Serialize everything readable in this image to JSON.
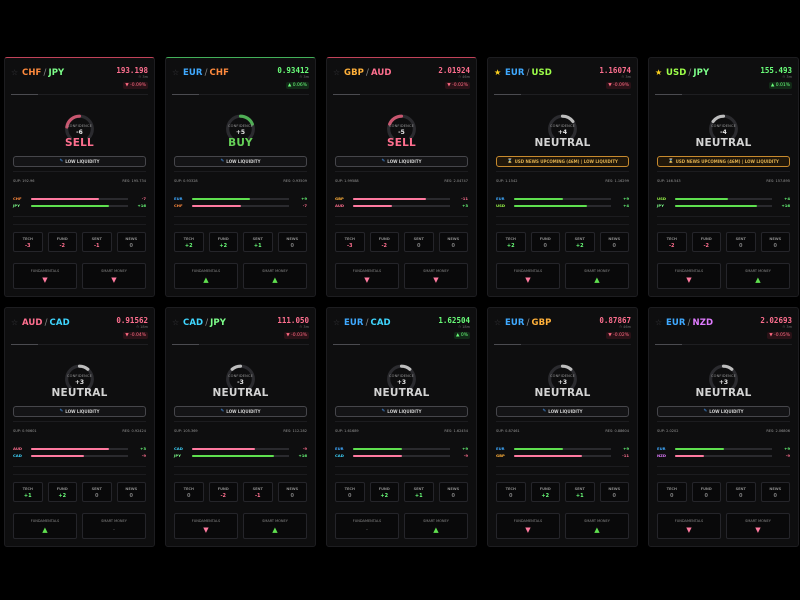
{
  "colors": {
    "CHF": "#ff8a3d",
    "JPY": "#7dff8a",
    "EUR": "#3fa9ff",
    "GBP": "#ffb03a",
    "AUD": "#ff6f8f",
    "USD": "#9dff4a",
    "CAD": "#3fd6ff",
    "NZD": "#e07bff",
    "positive": "#6aff7a",
    "negative": "#ff6f8f",
    "neutral": "#7a7a7a"
  },
  "labels": {
    "confidence": "CONFIDENCE",
    "low_liquidity": "LOW LIQUIDITY",
    "news_upcoming": "USD NEWS UPCOMING (46M) | LOW LIQUIDITY",
    "tech": "TECH",
    "fund": "FUND",
    "sent": "SENT",
    "news": "NEWS",
    "fundamentals": "FUNDAMENTALS",
    "smart_money": "SMART MONEY"
  },
  "cards": [
    {
      "base": "CHF",
      "quote": "JPY",
      "starred": false,
      "price": "193.198",
      "meta": "⏱ 3m",
      "change": "▼ -0.09%",
      "change_dir": "neg",
      "topline": "red",
      "progress": 0.2,
      "confidence": -6,
      "confidence_text": "-6",
      "signal": "SELL",
      "banner": "low",
      "sup": "SUP: 192.96",
      "res": "RES: 195.734",
      "rows": [
        {
          "code": "CHF",
          "score": "-7",
          "score_dir": "neg",
          "strength": 0.7,
          "bar": "neg"
        },
        {
          "code": "JPY",
          "score": "+16",
          "score_dir": "pos",
          "strength": 0.8,
          "bar": "pos"
        }
      ],
      "tech": "-3",
      "fund": "-2",
      "sent": "-1",
      "news": "0",
      "fundamentals": "down",
      "smart_money": "down"
    },
    {
      "base": "EUR",
      "quote": "CHF",
      "starred": false,
      "price": "0.93412",
      "meta": "⏱ 3m",
      "change": "▲ 0.06%",
      "change_dir": "pos",
      "topline": "green",
      "progress": 0.2,
      "confidence": 5,
      "confidence_text": "+5",
      "signal": "BUY",
      "banner": "low",
      "sup": "SUP: 0.93328",
      "res": "RES: 0.93509",
      "rows": [
        {
          "code": "EUR",
          "score": "+9",
          "score_dir": "pos",
          "strength": 0.6,
          "bar": "pos"
        },
        {
          "code": "CHF",
          "score": "-7",
          "score_dir": "neg",
          "strength": 0.5,
          "bar": "neg"
        }
      ],
      "tech": "+2",
      "fund": "+2",
      "sent": "+1",
      "news": "0",
      "fundamentals": "up",
      "smart_money": "up"
    },
    {
      "base": "GBP",
      "quote": "AUD",
      "starred": false,
      "price": "2.01924",
      "meta": "⏱ 46m",
      "change": "▼ -0.02%",
      "change_dir": "neg",
      "topline": "red",
      "progress": 0.2,
      "confidence": -5,
      "confidence_text": "-5",
      "signal": "SELL",
      "banner": "low",
      "sup": "SUP: 1.99588",
      "res": "RES: 2.04747",
      "rows": [
        {
          "code": "GBP",
          "score": "-11",
          "score_dir": "neg",
          "strength": 0.75,
          "bar": "neg"
        },
        {
          "code": "AUD",
          "score": "+3",
          "score_dir": "pos",
          "strength": 0.4,
          "bar": "neg"
        }
      ],
      "tech": "-3",
      "fund": "-2",
      "sent": "0",
      "news": "0",
      "fundamentals": "down",
      "smart_money": "down"
    },
    {
      "base": "EUR",
      "quote": "USD",
      "starred": true,
      "price": "1.16074",
      "meta": "⏱ 3m",
      "change": "▼ -0.09%",
      "change_dir": "neg",
      "topline": "none",
      "progress": 0.2,
      "confidence": 4,
      "confidence_text": "+4",
      "signal": "NEUTRAL",
      "banner": "news",
      "sup": "SUP: 1.1542",
      "res": "RES: 1.16299",
      "rows": [
        {
          "code": "EUR",
          "score": "+9",
          "score_dir": "pos",
          "strength": 0.5,
          "bar": "pos"
        },
        {
          "code": "USD",
          "score": "+4",
          "score_dir": "pos",
          "strength": 0.75,
          "bar": "pos"
        }
      ],
      "tech": "+2",
      "fund": "0",
      "sent": "+2",
      "news": "0",
      "fundamentals": "down",
      "smart_money": "up"
    },
    {
      "base": "USD",
      "quote": "JPY",
      "starred": true,
      "price": "155.493",
      "meta": "⏱ 3m",
      "change": "▲ 0.01%",
      "change_dir": "pos",
      "topline": "none",
      "progress": 0.2,
      "confidence": -4,
      "confidence_text": "-4",
      "signal": "NEUTRAL",
      "banner": "news",
      "sup": "SUP: 146.543",
      "res": "RES: 157.895",
      "rows": [
        {
          "code": "USD",
          "score": "+4",
          "score_dir": "pos",
          "strength": 0.55,
          "bar": "pos"
        },
        {
          "code": "JPY",
          "score": "+16",
          "score_dir": "pos",
          "strength": 0.85,
          "bar": "pos"
        }
      ],
      "tech": "-2",
      "fund": "-2",
      "sent": "0",
      "news": "0",
      "fundamentals": "down",
      "smart_money": "up"
    },
    {
      "base": "AUD",
      "quote": "CAD",
      "starred": false,
      "price": "0.91562",
      "meta": "⏱ 18m",
      "change": "▼ -0.04%",
      "change_dir": "neg",
      "topline": "none",
      "progress": 0.2,
      "confidence": 3,
      "confidence_text": "+3",
      "signal": "NEUTRAL",
      "banner": "low",
      "sup": "SUP: 0.90601",
      "res": "RES: 0.92424",
      "rows": [
        {
          "code": "AUD",
          "score": "+3",
          "score_dir": "pos",
          "strength": 0.8,
          "bar": "neg"
        },
        {
          "code": "CAD",
          "score": "-9",
          "score_dir": "neg",
          "strength": 0.55,
          "bar": "neg"
        }
      ],
      "tech": "+1",
      "fund": "+2",
      "sent": "0",
      "news": "0",
      "fundamentals": "up",
      "smart_money": "none"
    },
    {
      "base": "CAD",
      "quote": "JPY",
      "starred": false,
      "price": "111.050",
      "meta": "⏱ 3m",
      "change": "▼ -0.03%",
      "change_dir": "neg",
      "topline": "none",
      "progress": 0.2,
      "confidence": -3,
      "confidence_text": "-3",
      "signal": "NEUTRAL",
      "banner": "low",
      "sup": "SUP: 105.369",
      "res": "RES: 112.282",
      "rows": [
        {
          "code": "CAD",
          "score": "-9",
          "score_dir": "neg",
          "strength": 0.65,
          "bar": "neg"
        },
        {
          "code": "JPY",
          "score": "+16",
          "score_dir": "pos",
          "strength": 0.85,
          "bar": "pos"
        }
      ],
      "tech": "0",
      "fund": "-2",
      "sent": "-1",
      "news": "0",
      "fundamentals": "down",
      "smart_money": "up"
    },
    {
      "base": "EUR",
      "quote": "CAD",
      "starred": false,
      "price": "1.62504",
      "meta": "⏱ 18m",
      "change": "▲ 0%",
      "change_dir": "pos",
      "topline": "none",
      "progress": 0.2,
      "confidence": 3,
      "confidence_text": "+3",
      "signal": "NEUTRAL",
      "banner": "low",
      "sup": "SUP: 1.61689",
      "res": "RES: 1.62454",
      "rows": [
        {
          "code": "EUR",
          "score": "+9",
          "score_dir": "pos",
          "strength": 0.5,
          "bar": "pos"
        },
        {
          "code": "CAD",
          "score": "-9",
          "score_dir": "neg",
          "strength": 0.5,
          "bar": "neg"
        }
      ],
      "tech": "0",
      "fund": "+2",
      "sent": "+1",
      "news": "0",
      "fundamentals": "none",
      "smart_money": "up"
    },
    {
      "base": "EUR",
      "quote": "GBP",
      "starred": false,
      "price": "0.87867",
      "meta": "⏱ 46m",
      "change": "▼ -0.02%",
      "change_dir": "neg",
      "topline": "none",
      "progress": 0.2,
      "confidence": 3,
      "confidence_text": "+3",
      "signal": "NEUTRAL",
      "banner": "low",
      "sup": "SUP: 0.87461",
      "res": "RES: 0.88604",
      "rows": [
        {
          "code": "EUR",
          "score": "+9",
          "score_dir": "pos",
          "strength": 0.5,
          "bar": "pos"
        },
        {
          "code": "GBP",
          "score": "-11",
          "score_dir": "neg",
          "strength": 0.7,
          "bar": "neg"
        }
      ],
      "tech": "0",
      "fund": "+2",
      "sent": "+1",
      "news": "0",
      "fundamentals": "down",
      "smart_money": "up"
    },
    {
      "base": "EUR",
      "quote": "NZD",
      "starred": false,
      "price": "2.02693",
      "meta": "⏱ 3m",
      "change": "▼ -0.05%",
      "change_dir": "neg",
      "topline": "none",
      "progress": 0.2,
      "confidence": 3,
      "confidence_text": "+3",
      "signal": "NEUTRAL",
      "banner": "low",
      "sup": "SUP: 2.0202",
      "res": "RES: 2.06806",
      "rows": [
        {
          "code": "EUR",
          "score": "+9",
          "score_dir": "pos",
          "strength": 0.5,
          "bar": "pos"
        },
        {
          "code": "NZD",
          "score": "-9",
          "score_dir": "neg",
          "strength": 0.3,
          "bar": "neg"
        }
      ],
      "tech": "0",
      "fund": "0",
      "sent": "0",
      "news": "0",
      "fundamentals": "down",
      "smart_money": "down"
    }
  ]
}
